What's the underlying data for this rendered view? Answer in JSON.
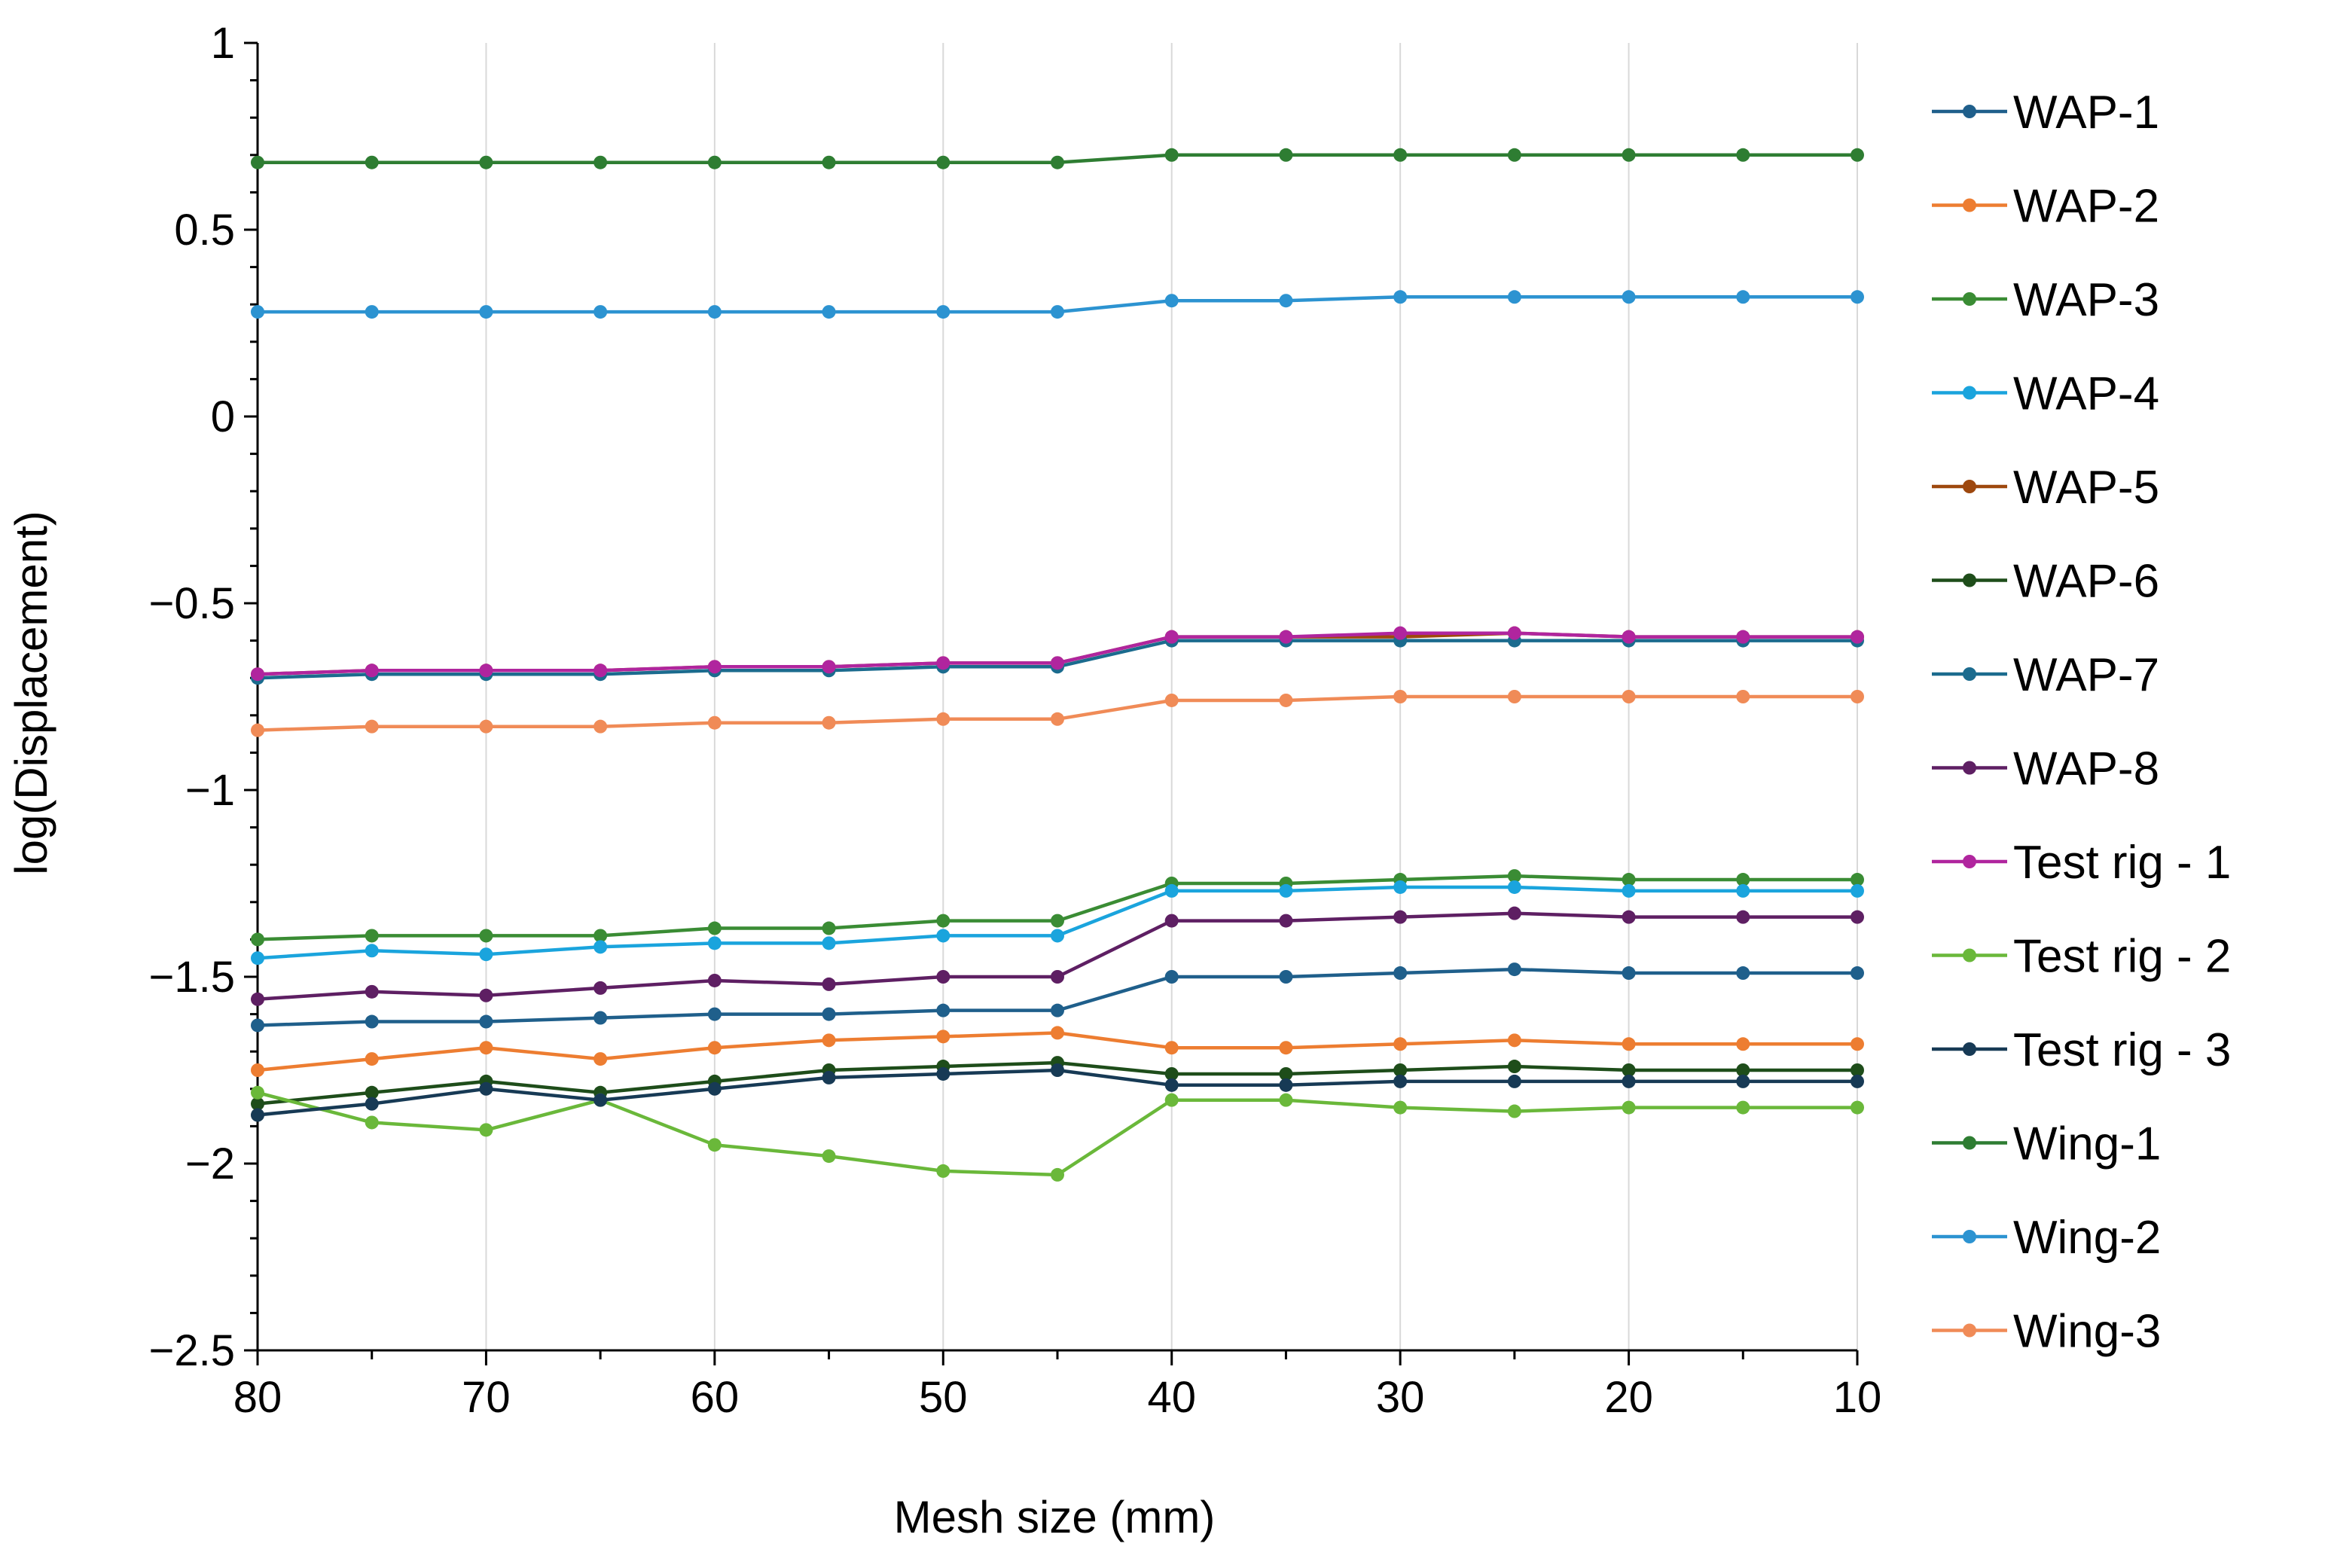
{
  "chart_data": {
    "type": "line",
    "title": "",
    "xlabel": "Mesh size (mm)",
    "ylabel": "log(Displacement)",
    "x": [
      80,
      75,
      70,
      65,
      60,
      55,
      50,
      45,
      40,
      35,
      30,
      25,
      20,
      15,
      10
    ],
    "xlim": [
      80,
      10
    ],
    "ylim": [
      -2.5,
      1
    ],
    "x_ticks": [
      80,
      70,
      60,
      50,
      40,
      30,
      20,
      10
    ],
    "x_tick_labels": [
      "80",
      "70",
      "60",
      "50",
      "40",
      "30",
      "20",
      "10"
    ],
    "y_ticks": [
      1,
      0.5,
      0,
      -0.5,
      -1,
      -1.5,
      -2,
      -2.5
    ],
    "y_tick_labels": [
      "1",
      "0.5",
      "0",
      "−0.5",
      "−1",
      "−1.5",
      "−2",
      "−2.5"
    ],
    "grid": true,
    "legend_position": "right",
    "series": [
      {
        "name": "WAP-1",
        "color": "#1f5f8b",
        "values": [
          -1.63,
          -1.62,
          -1.62,
          -1.61,
          -1.6,
          -1.6,
          -1.59,
          -1.59,
          -1.5,
          -1.5,
          -1.49,
          -1.48,
          -1.49,
          -1.49,
          -1.49
        ]
      },
      {
        "name": "WAP-2",
        "color": "#ed7d31",
        "values": [
          -1.75,
          -1.72,
          -1.69,
          -1.72,
          -1.69,
          -1.67,
          -1.66,
          -1.65,
          -1.69,
          -1.69,
          -1.68,
          -1.67,
          -1.68,
          -1.68,
          -1.68
        ]
      },
      {
        "name": "WAP-3",
        "color": "#3a8c34",
        "values": [
          -1.4,
          -1.39,
          -1.39,
          -1.39,
          -1.37,
          -1.37,
          -1.35,
          -1.35,
          -1.25,
          -1.25,
          -1.24,
          -1.23,
          -1.24,
          -1.24,
          -1.24
        ]
      },
      {
        "name": "WAP-4",
        "color": "#1aa4dd",
        "values": [
          -1.45,
          -1.43,
          -1.44,
          -1.42,
          -1.41,
          -1.41,
          -1.39,
          -1.39,
          -1.27,
          -1.27,
          -1.26,
          -1.26,
          -1.27,
          -1.27,
          -1.27
        ]
      },
      {
        "name": "WAP-5",
        "color": "#9e480e",
        "values": [
          -0.69,
          -0.68,
          -0.68,
          -0.68,
          -0.67,
          -0.67,
          -0.66,
          -0.66,
          -0.59,
          -0.59,
          -0.59,
          -0.58,
          -0.59,
          -0.59,
          -0.59
        ]
      },
      {
        "name": "WAP-6",
        "color": "#1e4d1a",
        "values": [
          -1.84,
          -1.81,
          -1.78,
          -1.81,
          -1.78,
          -1.75,
          -1.74,
          -1.73,
          -1.76,
          -1.76,
          -1.75,
          -1.74,
          -1.75,
          -1.75,
          -1.75
        ]
      },
      {
        "name": "WAP-7",
        "color": "#1b6b8e",
        "values": [
          -0.7,
          -0.69,
          -0.69,
          -0.69,
          -0.68,
          -0.68,
          -0.67,
          -0.67,
          -0.6,
          -0.6,
          -0.6,
          -0.6,
          -0.6,
          -0.6,
          -0.6
        ]
      },
      {
        "name": "WAP-8",
        "color": "#5e1f63",
        "values": [
          -1.56,
          -1.54,
          -1.55,
          -1.53,
          -1.51,
          -1.52,
          -1.5,
          -1.5,
          -1.35,
          -1.35,
          -1.34,
          -1.33,
          -1.34,
          -1.34,
          -1.34
        ]
      },
      {
        "name": "Test rig - 1",
        "color": "#b0259e",
        "values": [
          -0.69,
          -0.68,
          -0.68,
          -0.68,
          -0.67,
          -0.67,
          -0.66,
          -0.66,
          -0.59,
          -0.59,
          -0.58,
          -0.58,
          -0.59,
          -0.59,
          -0.59
        ]
      },
      {
        "name": "Test rig - 2",
        "color": "#6ab83a",
        "values": [
          -1.81,
          -1.89,
          -1.91,
          -1.83,
          -1.95,
          -1.98,
          -2.02,
          -2.03,
          -1.83,
          -1.83,
          -1.85,
          -1.86,
          -1.85,
          -1.85,
          -1.85
        ]
      },
      {
        "name": "Test rig - 3",
        "color": "#173a55",
        "values": [
          -1.87,
          -1.84,
          -1.8,
          -1.83,
          -1.8,
          -1.77,
          -1.76,
          -1.75,
          -1.79,
          -1.79,
          -1.78,
          -1.78,
          -1.78,
          -1.78,
          -1.78
        ]
      },
      {
        "name": "Wing-1",
        "color": "#2e7d32",
        "values": [
          0.68,
          0.68,
          0.68,
          0.68,
          0.68,
          0.68,
          0.68,
          0.68,
          0.7,
          0.7,
          0.7,
          0.7,
          0.7,
          0.7,
          0.7
        ]
      },
      {
        "name": "Wing-2",
        "color": "#2c93d1",
        "values": [
          0.28,
          0.28,
          0.28,
          0.28,
          0.28,
          0.28,
          0.28,
          0.28,
          0.31,
          0.31,
          0.32,
          0.32,
          0.32,
          0.32,
          0.32
        ]
      },
      {
        "name": "Wing-3",
        "color": "#f08b57",
        "values": [
          -0.84,
          -0.83,
          -0.83,
          -0.83,
          -0.82,
          -0.82,
          -0.81,
          -0.81,
          -0.76,
          -0.76,
          -0.75,
          -0.75,
          -0.75,
          -0.75,
          -0.75
        ]
      }
    ]
  }
}
